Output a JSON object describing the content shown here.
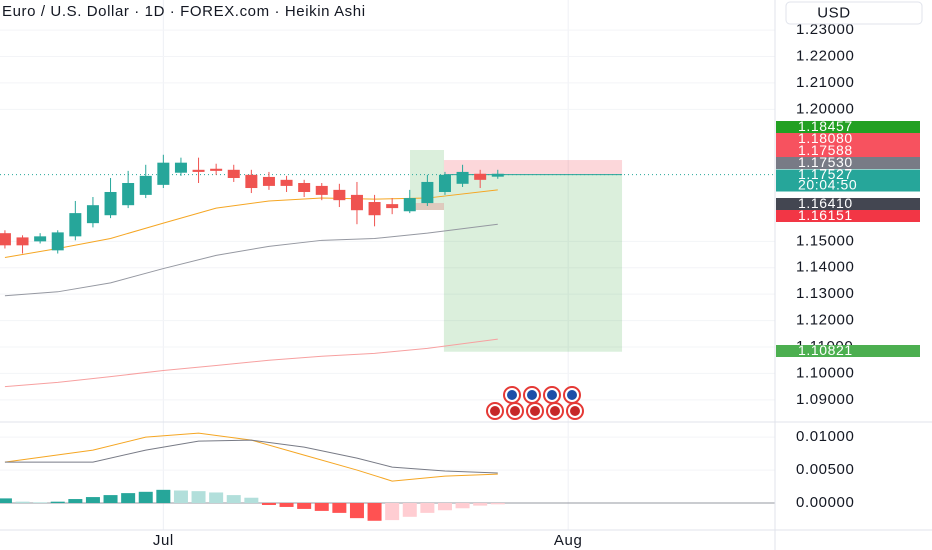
{
  "title": "Euro / U.S. Dollar · 1D · FOREX.com · Heikin Ashi",
  "currency": "USD",
  "chart_data": [
    {
      "type": "candlestick",
      "x": [
        0,
        1,
        2,
        3,
        4,
        5,
        6,
        7,
        8,
        9,
        10,
        11,
        12,
        13,
        14,
        15,
        16,
        17,
        18,
        19,
        20,
        21,
        22,
        23,
        24,
        25,
        26,
        27,
        28
      ],
      "open": [
        1.1531,
        1.1515,
        1.15,
        1.1466,
        1.1519,
        1.1569,
        1.1599,
        1.1637,
        1.1676,
        1.1714,
        1.176,
        1.1771,
        1.1775,
        1.1771,
        1.1752,
        1.1744,
        1.1733,
        1.1721,
        1.171,
        1.1695,
        1.1676,
        1.1649,
        1.1641,
        1.1614,
        1.1645,
        1.1687,
        1.1718,
        1.1756,
        1.1745
      ],
      "high": [
        1.1542,
        1.1523,
        1.1531,
        1.1542,
        1.1653,
        1.1668,
        1.174,
        1.1767,
        1.179,
        1.1828,
        1.1817,
        1.1817,
        1.1794,
        1.179,
        1.1771,
        1.1763,
        1.1748,
        1.1733,
        1.1721,
        1.1718,
        1.1725,
        1.1676,
        1.1664,
        1.1695,
        1.1752,
        1.1763,
        1.179,
        1.1771,
        1.1771
      ],
      "low": [
        1.1473,
        1.1454,
        1.1492,
        1.1454,
        1.1504,
        1.1553,
        1.1588,
        1.1626,
        1.1664,
        1.1702,
        1.1748,
        1.1721,
        1.1752,
        1.1725,
        1.1683,
        1.1695,
        1.1687,
        1.1668,
        1.1656,
        1.163,
        1.1565,
        1.1557,
        1.1603,
        1.1607,
        1.1634,
        1.1676,
        1.1706,
        1.1702,
        1.1737
      ],
      "close": [
        1.1485,
        1.1485,
        1.1519,
        1.1534,
        1.1607,
        1.1637,
        1.1687,
        1.1721,
        1.1748,
        1.1798,
        1.1798,
        1.1763,
        1.1767,
        1.174,
        1.1702,
        1.171,
        1.171,
        1.1687,
        1.1676,
        1.1656,
        1.1618,
        1.1599,
        1.1626,
        1.1664,
        1.1725,
        1.1752,
        1.1763,
        1.1733,
        1.1756
      ],
      "up_color": "#26a69a",
      "down_color": "#ef5350",
      "xlim": [
        -0.28,
        43.75
      ],
      "xticks": [
        {
          "value": 9,
          "label": "Jul"
        },
        {
          "value": 32,
          "label": "Aug"
        }
      ],
      "ylim": [
        1.0816,
        1.2414
      ],
      "yticks": [
        {
          "value": 1.09,
          "label": "1.09000"
        },
        {
          "value": 1.1,
          "label": "1.10000"
        },
        {
          "value": 1.11,
          "label": "1.11000"
        },
        {
          "value": 1.12,
          "label": "1.12000"
        },
        {
          "value": 1.13,
          "label": "1.13000"
        },
        {
          "value": 1.14,
          "label": "1.14000"
        },
        {
          "value": 1.15,
          "label": "1.15000"
        },
        {
          "value": 1.2,
          "label": "1.20000"
        },
        {
          "value": 1.21,
          "label": "1.21000"
        },
        {
          "value": 1.22,
          "label": "1.22000"
        },
        {
          "value": 1.23,
          "label": "1.23000"
        }
      ],
      "grid": true,
      "lines": [
        {
          "color": "#f5a623",
          "x": [
            0,
            3,
            6,
            9,
            12,
            15,
            18,
            21,
            24,
            28
          ],
          "values": [
            1.1439,
            1.1473,
            1.1511,
            1.1569,
            1.1626,
            1.1653,
            1.1664,
            1.166,
            1.1664,
            1.1695
          ]
        },
        {
          "color": "#9598a1",
          "x": [
            0,
            3,
            6,
            9,
            12,
            15,
            18,
            21,
            24,
            28
          ],
          "values": [
            1.1294,
            1.1309,
            1.1343,
            1.1397,
            1.1447,
            1.1481,
            1.1504,
            1.1511,
            1.1531,
            1.1565
          ]
        },
        {
          "color": "#f7a0a0",
          "x": [
            0,
            3,
            6,
            9,
            12,
            15,
            18,
            21,
            24,
            28
          ],
          "values": [
            1.095,
            1.0966,
            1.0988,
            1.1011,
            1.103,
            1.105,
            1.1065,
            1.1076,
            1.1095,
            1.113
          ]
        }
      ],
      "position": {
        "entry": 1.17527,
        "stop": 1.1808,
        "target": 1.10821,
        "x": [
          24.94,
          35.06
        ]
      },
      "price_tags": [
        {
          "value": 1.18457,
          "color": "#22a022"
        },
        {
          "value": 1.1808,
          "label": "1.18080",
          "color": "#f7525f"
        },
        {
          "value": 1.17588,
          "color": "#f7525f"
        },
        {
          "value": 1.1753,
          "label": "1.17530",
          "color": "#787b86"
        },
        {
          "value": 1.17527,
          "countdown": "20:04:50",
          "color": "#26a69a"
        },
        {
          "value": 1.1641,
          "label": "1.16410",
          "color": "#434651"
        },
        {
          "value": 1.16151,
          "color": "#f23645"
        },
        {
          "value": 1.10821,
          "color": "#4caf50"
        }
      ]
    },
    {
      "type": "macd",
      "x": [
        0,
        1,
        2,
        3,
        4,
        5,
        6,
        7,
        8,
        9,
        10,
        11,
        12,
        13,
        14,
        15,
        16,
        17,
        18,
        19,
        20,
        21,
        22,
        23,
        24,
        25,
        26,
        27,
        28
      ],
      "histogram": [
        0.0007,
        0.0002,
        0.0001,
        0.0002,
        0.0006,
        0.0009,
        0.0012,
        0.0015,
        0.0017,
        0.002,
        0.0019,
        0.0018,
        0.0016,
        0.0012,
        0.0008,
        -0.0003,
        -0.0006,
        -0.0009,
        -0.0012,
        -0.0015,
        -0.0023,
        -0.0027,
        -0.0026,
        -0.0021,
        -0.0015,
        -0.0011,
        -0.0008,
        -0.0004,
        -0.0002
      ],
      "histogram_colors": {
        "pos_up": "#26a69a",
        "pos_down": "#b2dfdb",
        "neg_down": "#ff5252",
        "neg_up": "#ffcdd2"
      },
      "lines": [
        {
          "color": "#f5a623",
          "x": [
            0,
            5,
            8,
            11,
            14,
            17,
            20,
            22,
            25,
            28
          ],
          "values": [
            0.00621,
            0.00803,
            0.01,
            0.01061,
            0.00955,
            0.00727,
            0.005,
            0.00333,
            0.00409,
            0.00439
          ]
        },
        {
          "color": "#787b86",
          "x": [
            0,
            5,
            8,
            11,
            14,
            17,
            20,
            22,
            25,
            28
          ],
          "values": [
            0.00621,
            0.00621,
            0.00803,
            0.00939,
            0.00955,
            0.00848,
            0.00682,
            0.00545,
            0.00485,
            0.00455
          ]
        }
      ],
      "xlim": [
        -0.28,
        43.75
      ],
      "ylim": [
        -0.0041,
        0.0123
      ],
      "yticks": [
        {
          "value": 0,
          "label": "0.00000"
        },
        {
          "value": 0.005,
          "label": "0.00500"
        },
        {
          "value": 0.01,
          "label": "0.01000"
        }
      ]
    }
  ]
}
